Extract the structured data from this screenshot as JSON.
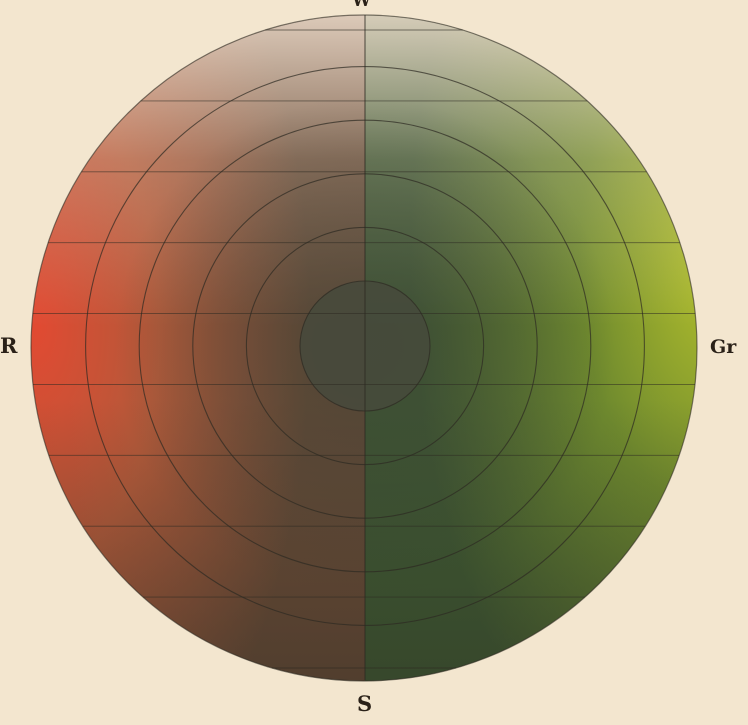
{
  "labels": {
    "top": "W",
    "left": "R",
    "right": "Gr",
    "bottom": "S"
  },
  "colors": {
    "paper": "#f3e6cf",
    "red": "#d8442e",
    "green": "#a6b82c",
    "white_top": "#efe2d0",
    "center_dark": "#4a4a3c",
    "line": "#2d2a22"
  },
  "diagram": {
    "rings": 5,
    "center_disc": 1,
    "horizontal_lines": 10
  }
}
